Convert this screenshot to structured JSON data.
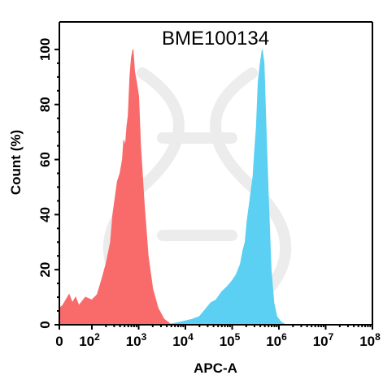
{
  "chart_data": {
    "type": "area",
    "title": "BME100134",
    "xlabel": "APC-A",
    "ylabel": "Count (%)",
    "x_scale": "biexponential",
    "xlim": [
      0,
      100000000
    ],
    "ylim": [
      0,
      110
    ],
    "grid": false,
    "legend": "none",
    "x_ticks": [
      {
        "value": 0,
        "label": "0",
        "sup": ""
      },
      {
        "value": 100,
        "label": "10",
        "sup": "2"
      },
      {
        "value": 1000,
        "label": "10",
        "sup": "3"
      },
      {
        "value": 10000,
        "label": "10",
        "sup": "4"
      },
      {
        "value": 100000,
        "label": "10",
        "sup": "5"
      },
      {
        "value": 1000000,
        "label": "10",
        "sup": "6"
      },
      {
        "value": 10000000,
        "label": "10",
        "sup": "7"
      },
      {
        "value": 100000000,
        "label": "10",
        "sup": "8"
      }
    ],
    "y_ticks": [
      0,
      20,
      40,
      60,
      80,
      100
    ],
    "series": [
      {
        "color": "#f96b6b",
        "points": [
          [
            0,
            6
          ],
          [
            10,
            7
          ],
          [
            20,
            9
          ],
          [
            30,
            11
          ],
          [
            40,
            8
          ],
          [
            50,
            10
          ],
          [
            60,
            7
          ],
          [
            80,
            10
          ],
          [
            100,
            9
          ],
          [
            130,
            11
          ],
          [
            160,
            16
          ],
          [
            200,
            22
          ],
          [
            250,
            30
          ],
          [
            280,
            40
          ],
          [
            320,
            47
          ],
          [
            350,
            52
          ],
          [
            400,
            55
          ],
          [
            450,
            60
          ],
          [
            480,
            67
          ],
          [
            520,
            65
          ],
          [
            560,
            72
          ],
          [
            600,
            76
          ],
          [
            650,
            90
          ],
          [
            700,
            97
          ],
          [
            760,
            100
          ],
          [
            820,
            92
          ],
          [
            900,
            88
          ],
          [
            1000,
            83
          ],
          [
            1100,
            65
          ],
          [
            1300,
            45
          ],
          [
            1600,
            25
          ],
          [
            2000,
            13
          ],
          [
            2600,
            6
          ],
          [
            3500,
            2
          ],
          [
            5000,
            0
          ]
        ]
      },
      {
        "color": "#5bd0f2",
        "points": [
          [
            4000,
            0
          ],
          [
            8000,
            1
          ],
          [
            14000,
            2
          ],
          [
            20000,
            3
          ],
          [
            28000,
            6
          ],
          [
            35000,
            8
          ],
          [
            45000,
            9
          ],
          [
            60000,
            12
          ],
          [
            80000,
            14
          ],
          [
            100000,
            16
          ],
          [
            120000,
            18
          ],
          [
            150000,
            22
          ],
          [
            170000,
            27
          ],
          [
            190000,
            30
          ],
          [
            210000,
            38
          ],
          [
            230000,
            43
          ],
          [
            260000,
            50
          ],
          [
            280000,
            54
          ],
          [
            300000,
            62
          ],
          [
            330000,
            72
          ],
          [
            360000,
            88
          ],
          [
            400000,
            95
          ],
          [
            440000,
            100
          ],
          [
            480000,
            95
          ],
          [
            530000,
            72
          ],
          [
            600000,
            45
          ],
          [
            680000,
            20
          ],
          [
            780000,
            8
          ],
          [
            900000,
            3
          ],
          [
            1100000,
            1
          ],
          [
            1400000,
            0
          ]
        ]
      }
    ]
  }
}
